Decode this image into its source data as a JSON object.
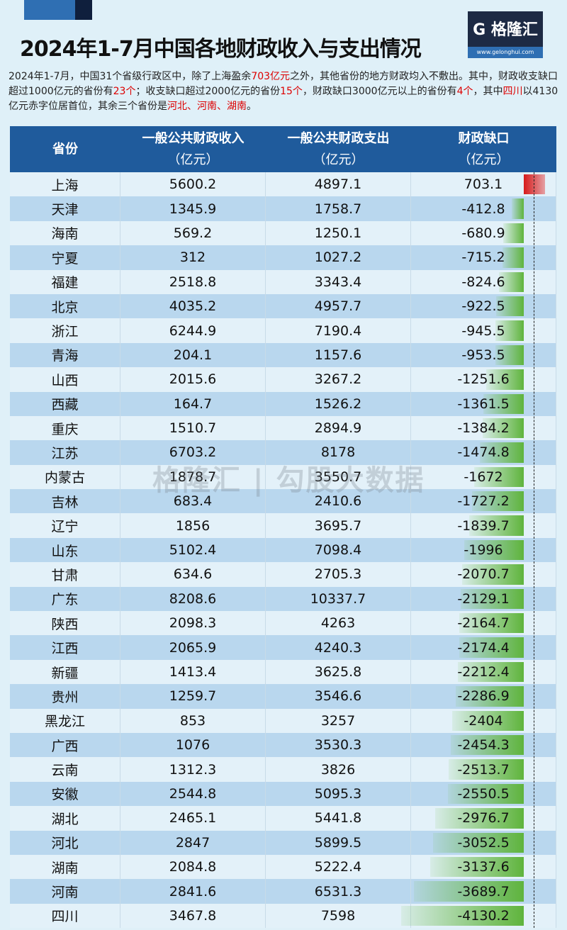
{
  "title": "2024年1-7月中国各地财政收入与支出情况",
  "logo": {
    "name": "格隆汇",
    "url": "www.gelonghui.com"
  },
  "intro": {
    "p1": "2024年1-7月，中国31个省级行政区中，除了上海盈余",
    "h1": "703亿元",
    "p2": "之外，其他省份的地方财政均入不敷出。其中，财政收支缺口超过1000亿元的省份有",
    "h2": "23个",
    "p3": "；收支缺口超过2000亿元的省份",
    "h3": "15个",
    "p4": "，财政缺口3000亿元以上的省份有",
    "h4": "4个",
    "p5": "，其中",
    "h5": "四川",
    "p6": "以4130亿元赤字位居首位，其余三个省份是",
    "h6": "河北、河南、湖南",
    "p7": "。"
  },
  "headers": {
    "province": "省份",
    "revenue": "一般公共财政收入",
    "expenditure": "一般公共财政支出",
    "gap": "财政缺口",
    "unit": "（亿元）"
  },
  "watermark": "格隆汇 | 勾股大数据",
  "colors": {
    "header": "#1f5b9c",
    "deficit_bar": "#5fb43c",
    "surplus_bar": "#d61a1a"
  },
  "rows": [
    [
      "上海",
      "5600.2",
      "4897.1",
      "703.1"
    ],
    [
      "天津",
      "1345.9",
      "1758.7",
      "-412.8"
    ],
    [
      "海南",
      "569.2",
      "1250.1",
      "-680.9"
    ],
    [
      "宁夏",
      "312",
      "1027.2",
      "-715.2"
    ],
    [
      "福建",
      "2518.8",
      "3343.4",
      "-824.6"
    ],
    [
      "北京",
      "4035.2",
      "4957.7",
      "-922.5"
    ],
    [
      "浙江",
      "6244.9",
      "7190.4",
      "-945.5"
    ],
    [
      "青海",
      "204.1",
      "1157.6",
      "-953.5"
    ],
    [
      "山西",
      "2015.6",
      "3267.2",
      "-1251.6"
    ],
    [
      "西藏",
      "164.7",
      "1526.2",
      "-1361.5"
    ],
    [
      "重庆",
      "1510.7",
      "2894.9",
      "-1384.2"
    ],
    [
      "江苏",
      "6703.2",
      "8178",
      "-1474.8"
    ],
    [
      "内蒙古",
      "1878.7",
      "3550.7",
      "-1672"
    ],
    [
      "吉林",
      "683.4",
      "2410.6",
      "-1727.2"
    ],
    [
      "辽宁",
      "1856",
      "3695.7",
      "-1839.7"
    ],
    [
      "山东",
      "5102.4",
      "7098.4",
      "-1996"
    ],
    [
      "甘肃",
      "634.6",
      "2705.3",
      "-2070.7"
    ],
    [
      "广东",
      "8208.6",
      "10337.7",
      "-2129.1"
    ],
    [
      "陕西",
      "2098.3",
      "4263",
      "-2164.7"
    ],
    [
      "江西",
      "2065.9",
      "4240.3",
      "-2174.4"
    ],
    [
      "新疆",
      "1413.4",
      "3625.8",
      "-2212.4"
    ],
    [
      "贵州",
      "1259.7",
      "3546.6",
      "-2286.9"
    ],
    [
      "黑龙江",
      "853",
      "3257",
      "-2404"
    ],
    [
      "广西",
      "1076",
      "3530.3",
      "-2454.3"
    ],
    [
      "云南",
      "1312.3",
      "3826",
      "-2513.7"
    ],
    [
      "安徽",
      "2544.8",
      "5095.3",
      "-2550.5"
    ],
    [
      "湖北",
      "2465.1",
      "5441.8",
      "-2976.7"
    ],
    [
      "河北",
      "2847",
      "5899.5",
      "-3052.5"
    ],
    [
      "湖南",
      "2084.8",
      "5222.4",
      "-3137.6"
    ],
    [
      "河南",
      "2841.6",
      "6531.3",
      "-3689.7"
    ],
    [
      "四川",
      "3467.8",
      "7598",
      "-4130.2"
    ]
  ]
}
